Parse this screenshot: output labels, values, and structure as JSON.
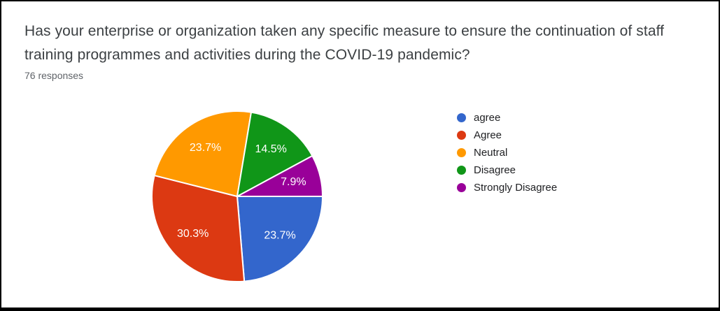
{
  "question": {
    "title": "Has your enterprise or organization taken any specific measure to ensure the continuation of staff training programmes and activities during the COVID-19 pandemic?",
    "responses_count": "76 responses"
  },
  "chart_data": {
    "type": "pie",
    "title": "Has your enterprise or organization taken any specific measure to ensure the continuation of staff training programmes and activities during the COVID-19 pandemic?",
    "subtitle": "76 responses",
    "categories": [
      "agree",
      "Agree",
      "Neutral",
      "Disagree",
      "Strongly Disagree"
    ],
    "values": [
      23.7,
      30.3,
      23.7,
      14.5,
      7.9
    ],
    "slice_labels": [
      "23.7%",
      "30.3%",
      "23.7%",
      "14.5%",
      "7.9%"
    ],
    "unit": "%",
    "colors": [
      "#3366CC",
      "#DC3912",
      "#FF9900",
      "#109618",
      "#990099"
    ],
    "start_angle_deg": 90,
    "direction": "clockwise",
    "legend_position": "right",
    "label_color": "#ffffff",
    "slice_border_color": "#ffffff"
  }
}
